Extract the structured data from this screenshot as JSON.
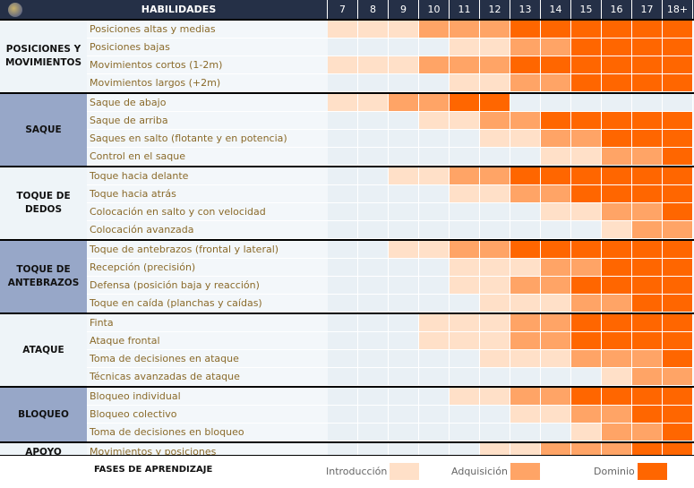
{
  "header": {
    "title": "HABILIDADES",
    "ages": [
      "7",
      "8",
      "9",
      "10",
      "11",
      "12",
      "13",
      "14",
      "15",
      "16",
      "17",
      "18+"
    ]
  },
  "colors": {
    "header": "#253047",
    "level0": "#e9f0f5",
    "level1": "#ffe0c8",
    "level2": "#ffa466",
    "level3": "#ff6600",
    "cat_light": "#eef4f8",
    "cat_blue": "#97a7c8"
  },
  "groups": [
    {
      "name": "POSICIONES Y MOVIMIENTOS",
      "style": "light",
      "skills": [
        {
          "name": "Posiciones altas y medias",
          "levels": [
            1,
            1,
            1,
            2,
            2,
            2,
            3,
            3,
            3,
            3,
            3,
            3
          ]
        },
        {
          "name": "Posiciones bajas",
          "levels": [
            0,
            0,
            0,
            0,
            1,
            1,
            2,
            2,
            3,
            3,
            3,
            3
          ]
        },
        {
          "name": "Movimientos cortos (1-2m)",
          "levels": [
            1,
            1,
            1,
            2,
            2,
            2,
            3,
            3,
            3,
            3,
            3,
            3
          ]
        },
        {
          "name": "Movimientos largos (+2m)",
          "levels": [
            0,
            0,
            0,
            0,
            1,
            1,
            2,
            2,
            3,
            3,
            3,
            3
          ]
        }
      ]
    },
    {
      "name": "SAQUE",
      "style": "blue",
      "skills": [
        {
          "name": "Saque de abajo",
          "levels": [
            1,
            1,
            2,
            2,
            3,
            3,
            0,
            0,
            0,
            0,
            0,
            0
          ]
        },
        {
          "name": "Saque de arriba",
          "levels": [
            0,
            0,
            0,
            1,
            1,
            2,
            2,
            3,
            3,
            3,
            3,
            3
          ]
        },
        {
          "name": "Saques en salto (flotante y en potencia)",
          "levels": [
            0,
            0,
            0,
            0,
            0,
            1,
            1,
            2,
            2,
            3,
            3,
            3
          ]
        },
        {
          "name": "Control en el saque",
          "levels": [
            0,
            0,
            0,
            0,
            0,
            0,
            0,
            1,
            1,
            2,
            2,
            3
          ]
        }
      ]
    },
    {
      "name": "TOQUE DE DEDOS",
      "style": "light",
      "skills": [
        {
          "name": "Toque hacia delante",
          "levels": [
            0,
            0,
            1,
            1,
            2,
            2,
            3,
            3,
            3,
            3,
            3,
            3
          ]
        },
        {
          "name": "Toque hacia atrás",
          "levels": [
            0,
            0,
            0,
            0,
            1,
            1,
            2,
            2,
            3,
            3,
            3,
            3
          ]
        },
        {
          "name": "Colocación en salto y con velocidad",
          "levels": [
            0,
            0,
            0,
            0,
            0,
            0,
            0,
            1,
            1,
            2,
            2,
            3
          ]
        },
        {
          "name": "Colocación avanzada",
          "levels": [
            0,
            0,
            0,
            0,
            0,
            0,
            0,
            0,
            0,
            1,
            2,
            2
          ]
        }
      ]
    },
    {
      "name": "TOQUE DE ANTEBRAZOS",
      "style": "blue",
      "skills": [
        {
          "name": "Toque de antebrazos (frontal y lateral)",
          "levels": [
            0,
            0,
            1,
            1,
            2,
            2,
            3,
            3,
            3,
            3,
            3,
            3
          ]
        },
        {
          "name": "Recepción (precisión)",
          "levels": [
            0,
            0,
            0,
            0,
            1,
            1,
            1,
            2,
            2,
            3,
            3,
            3
          ]
        },
        {
          "name": "Defensa (posición baja y reacción)",
          "levels": [
            0,
            0,
            0,
            0,
            1,
            1,
            2,
            2,
            3,
            3,
            3,
            3
          ]
        },
        {
          "name": "Toque en caída (planchas y caídas)",
          "levels": [
            0,
            0,
            0,
            0,
            0,
            1,
            1,
            1,
            2,
            2,
            3,
            3
          ]
        }
      ]
    },
    {
      "name": "ATAQUE",
      "style": "light",
      "skills": [
        {
          "name": "Finta",
          "levels": [
            0,
            0,
            0,
            1,
            1,
            1,
            2,
            2,
            3,
            3,
            3,
            3
          ]
        },
        {
          "name": "Ataque frontal",
          "levels": [
            0,
            0,
            0,
            1,
            1,
            1,
            2,
            2,
            3,
            3,
            3,
            3
          ]
        },
        {
          "name": "Toma de decisiones en ataque",
          "levels": [
            0,
            0,
            0,
            0,
            0,
            1,
            1,
            1,
            2,
            2,
            2,
            3
          ]
        },
        {
          "name": "Técnicas avanzadas de ataque",
          "levels": [
            0,
            0,
            0,
            0,
            0,
            0,
            0,
            0,
            0,
            1,
            2,
            2
          ]
        }
      ]
    },
    {
      "name": "BLOQUEO",
      "style": "blue",
      "skills": [
        {
          "name": "Bloqueo individual",
          "levels": [
            0,
            0,
            0,
            0,
            1,
            1,
            2,
            2,
            3,
            3,
            3,
            3
          ]
        },
        {
          "name": "Bloqueo colectivo",
          "levels": [
            0,
            0,
            0,
            0,
            0,
            0,
            1,
            1,
            2,
            2,
            3,
            3
          ]
        },
        {
          "name": "Toma de decisiones en bloqueo",
          "levels": [
            0,
            0,
            0,
            0,
            0,
            0,
            0,
            0,
            1,
            2,
            2,
            3
          ]
        }
      ]
    },
    {
      "name": "APOYO",
      "style": "light",
      "skills": [
        {
          "name": "Movimientos y posiciones",
          "levels": [
            0,
            0,
            0,
            0,
            0,
            1,
            1,
            2,
            2,
            2,
            3,
            3
          ]
        }
      ]
    }
  ],
  "legend": {
    "title": "FASES DE APRENDIZAJE",
    "items": [
      {
        "label": "Introducción",
        "level": 1
      },
      {
        "label": "Adquisición",
        "level": 2
      },
      {
        "label": "Dominio",
        "level": 3
      }
    ]
  }
}
